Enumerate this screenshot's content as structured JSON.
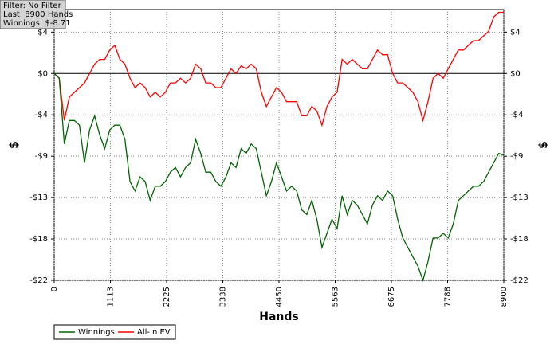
{
  "chart_data": {
    "type": "line",
    "info": [
      "Filter: No Filter",
      "Last  8900 Hands",
      "Winnings: $-8.71"
    ],
    "xlabel": "Hands",
    "ylabel": "$",
    "x": [
      0,
      100,
      200,
      300,
      400,
      500,
      600,
      700,
      800,
      900,
      1000,
      1100,
      1200,
      1300,
      1400,
      1500,
      1600,
      1700,
      1800,
      1900,
      2000,
      2100,
      2200,
      2300,
      2400,
      2500,
      2600,
      2700,
      2800,
      2900,
      3000,
      3100,
      3200,
      3300,
      3400,
      3500,
      3600,
      3700,
      3800,
      3900,
      4000,
      4100,
      4200,
      4300,
      4400,
      4500,
      4600,
      4700,
      4800,
      4900,
      5000,
      5100,
      5200,
      5300,
      5400,
      5500,
      5600,
      5700,
      5800,
      5900,
      6000,
      6100,
      6200,
      6300,
      6400,
      6500,
      6600,
      6700,
      6800,
      6900,
      7000,
      7100,
      7200,
      7300,
      7400,
      7500,
      7600,
      7700,
      7800,
      7900,
      8000,
      8100,
      8200,
      8300,
      8400,
      8500,
      8600,
      8700,
      8800,
      8900
    ],
    "series": [
      {
        "name": "Winnings",
        "color": "#006400",
        "values": [
          0,
          -0.5,
          -7.5,
          -5,
          -5,
          -5.5,
          -9.5,
          -6,
          -4.5,
          -6.5,
          -8,
          -6,
          -5.5,
          -5.5,
          -7,
          -11.5,
          -12.5,
          -11,
          -11.5,
          -13.5,
          -12,
          -12,
          -11.5,
          -10.5,
          -10,
          -11,
          -10,
          -9.5,
          -7,
          -8.5,
          -10.5,
          -10.5,
          -11.5,
          -12,
          -11,
          -9.5,
          -10,
          -8,
          -8.5,
          -7.5,
          -8,
          -10.5,
          -13,
          -11.5,
          -9.5,
          -11,
          -12.5,
          -12,
          -12.5,
          -14.5,
          -15,
          -13.5,
          -15.5,
          -18.5,
          -17,
          -15.5,
          -16.5,
          -13,
          -15,
          -13.5,
          -14,
          -15,
          -16,
          -14,
          -13,
          -13.5,
          -12.5,
          -13,
          -15.5,
          -17.5,
          -18.5,
          -19.5,
          -20.5,
          -22,
          -20,
          -17.5,
          -17.5,
          -17,
          -17.5,
          -16,
          -13.5,
          -13,
          -12.5,
          -12,
          -12,
          -11.5,
          -10.5,
          -9.5,
          -8.5,
          -8.71
        ]
      },
      {
        "name": "All-In EV",
        "color": "#ff0000",
        "values": [
          0,
          -0.5,
          -5,
          -2.5,
          -2,
          -1.5,
          -1,
          0,
          1,
          1.5,
          1.5,
          2.5,
          3,
          1.5,
          1,
          -0.5,
          -1.5,
          -1,
          -1.5,
          -2.5,
          -2,
          -2.5,
          -2,
          -1,
          -1,
          -0.5,
          -1,
          -0.5,
          1,
          0.5,
          -1,
          -1,
          -1.5,
          -1.5,
          -0.5,
          0.5,
          0,
          0.8,
          0.5,
          1,
          0.5,
          -2,
          -3.5,
          -2.5,
          -1.5,
          -2,
          -3,
          -3,
          -3,
          -4.5,
          -4.5,
          -3.5,
          -4,
          -5.5,
          -3.5,
          -2.5,
          -2,
          1.5,
          1,
          1.5,
          1,
          0.5,
          0.5,
          1.5,
          2.5,
          2,
          2,
          0,
          -1,
          -1,
          -1.5,
          -2,
          -3,
          -5,
          -3,
          -0.5,
          0,
          -0.5,
          0.5,
          1.5,
          2.5,
          2.5,
          3,
          3.5,
          3.5,
          4,
          4.5,
          6,
          6.5,
          6.5
        ]
      }
    ],
    "xlim": [
      0,
      8900
    ],
    "xticks": [
      0,
      1113,
      2225,
      3338,
      4450,
      5563,
      6675,
      7788,
      8900
    ],
    "ylim": [
      -22,
      6.8
    ],
    "yticks": [
      {
        "value": 4.4,
        "label": "$4"
      },
      {
        "value": 0,
        "label": "$0"
      },
      {
        "value": -4.4,
        "label": "-$4"
      },
      {
        "value": -8.8,
        "label": "-$9"
      },
      {
        "value": -13.2,
        "label": "-$13"
      },
      {
        "value": -17.6,
        "label": "-$18"
      },
      {
        "value": -22,
        "label": "-$22"
      }
    ],
    "grid": true,
    "legend": "bottom-left"
  }
}
